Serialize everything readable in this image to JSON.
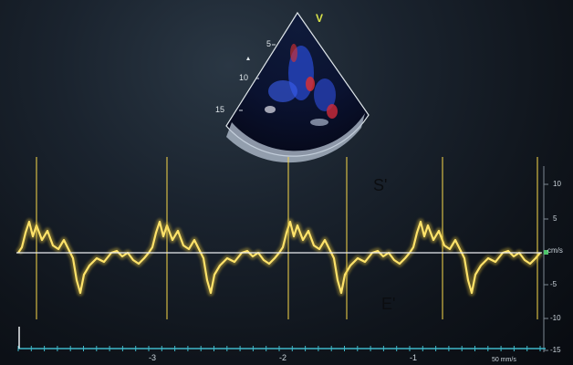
{
  "image": {
    "sector_orientation_label": "V",
    "depth_labels": [
      "5",
      "10",
      "15"
    ],
    "waveform_labels": {
      "systolic": "S'",
      "early_diastolic": "E'"
    },
    "velocity_scale": {
      "labels": [
        "10",
        "5",
        "cm/s",
        "-5",
        "-10",
        "-15"
      ],
      "unit": "cm/s"
    },
    "time_axis": {
      "labels": [
        "-3",
        "-2",
        "-1"
      ],
      "sweep_speed": "50 mm/s"
    },
    "colors": {
      "waveform": "#f3cf3a",
      "baseline": "#e9ecef",
      "time_axis": "#3fb8c9",
      "label_text": "#0b0d10",
      "v_marker": "#d8e24a"
    }
  }
}
